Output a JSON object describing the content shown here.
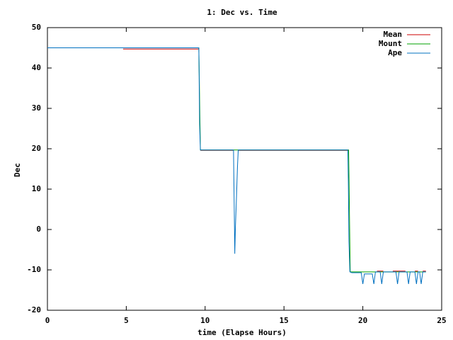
{
  "chart_data": {
    "type": "line",
    "title": "1: Dec vs. Time",
    "xlabel": "time (Elapse Hours)",
    "ylabel": "Dec",
    "xlim": [
      0,
      25
    ],
    "ylim": [
      -20,
      50
    ],
    "xticks": [
      0,
      5,
      10,
      15,
      20,
      25
    ],
    "yticks": [
      -20,
      -10,
      0,
      10,
      20,
      30,
      40,
      50
    ],
    "legend": "top-right",
    "series": [
      {
        "name": "Mean",
        "color": "#cc0000",
        "x": [
          4.8,
          9.6,
          null,
          9.7,
          11.8,
          null,
          12.1,
          19.1,
          null,
          20.9,
          21.3,
          null,
          21.9,
          22.7,
          null,
          23.3,
          23.5,
          null,
          23.8,
          24.0
        ],
        "values": [
          44.7,
          44.7,
          null,
          19.6,
          19.6,
          null,
          19.6,
          19.6,
          null,
          -10.3,
          -10.3,
          null,
          -10.3,
          -10.3,
          null,
          -10.3,
          -10.3,
          null,
          -10.3,
          -10.3
        ]
      },
      {
        "name": "Mount",
        "color": "#00a000",
        "x": [
          0,
          9.6,
          9.7,
          19.1,
          19.2,
          24.0
        ],
        "values": [
          45,
          45,
          19.7,
          19.7,
          -10.5,
          -10.5
        ]
      },
      {
        "name": "Ape",
        "color": "#0070c0",
        "x": [
          0,
          9.6,
          9.62,
          9.65,
          9.7,
          11.8,
          11.82,
          11.88,
          11.92,
          11.98,
          12.05,
          12.1,
          19.05,
          19.08,
          19.12,
          19.18,
          19.3,
          19.9,
          20.0,
          20.1,
          20.6,
          20.7,
          20.8,
          21.1,
          21.2,
          21.3,
          22.1,
          22.2,
          22.3,
          22.8,
          22.9,
          23.0,
          23.3,
          23.4,
          23.5,
          23.6,
          23.7,
          23.8,
          24.0
        ],
        "values": [
          45,
          45,
          38.5,
          26,
          19.7,
          19.7,
          13.5,
          -6,
          0.5,
          7,
          15.5,
          19.7,
          19.7,
          12,
          -3,
          -10.5,
          -10.7,
          -10.7,
          -13.5,
          -11,
          -11,
          -13.5,
          -10.5,
          -10.5,
          -13.5,
          -10.5,
          -10.5,
          -13.5,
          -10.5,
          -10.5,
          -13.5,
          -10.5,
          -10.5,
          -13.5,
          -10.5,
          -10.5,
          -13.5,
          -10.5,
          -10.5
        ]
      }
    ]
  }
}
